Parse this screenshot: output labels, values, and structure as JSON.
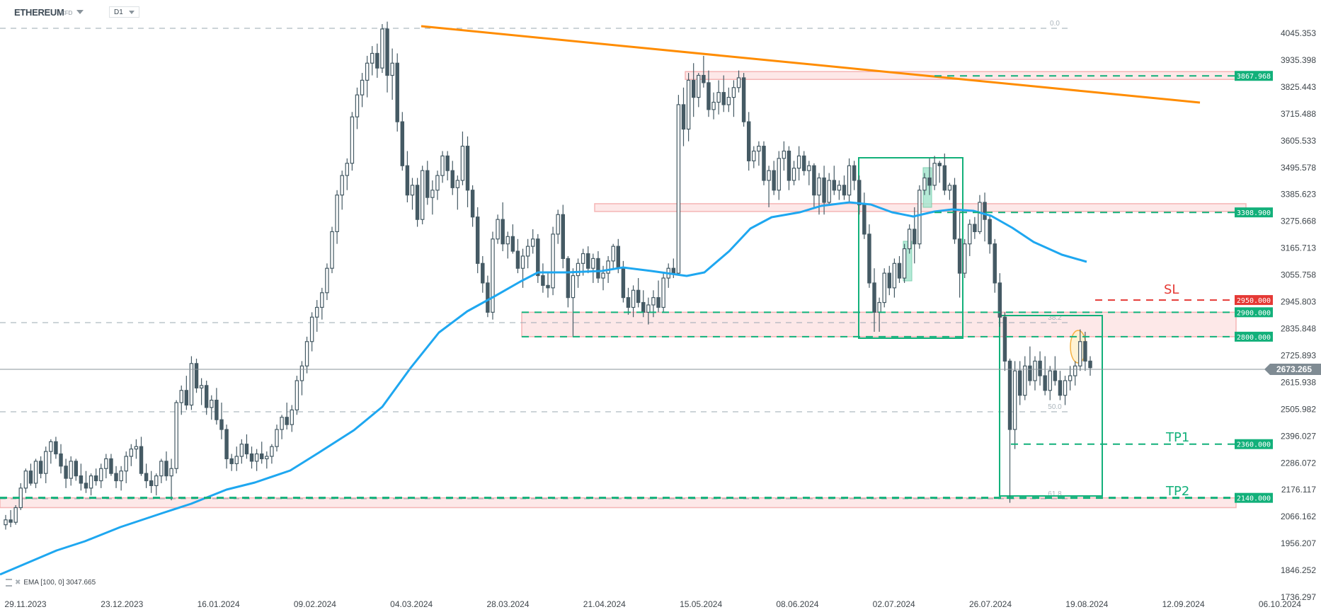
{
  "header": {
    "symbol": "ETHEREUM",
    "symbol_type": "CFD",
    "timeframe": "D1"
  },
  "indicator_legend": {
    "label": "EMA [100, 0] 3047.665"
  },
  "colors": {
    "candle": "#455a64",
    "ema": "#1ea7f0",
    "trendline": "#ff8c00",
    "green": "#12b07a",
    "red": "#e53935",
    "zone_fill": "#fde8e8",
    "zone_border": "#f5b5b5",
    "fib": "#9aa8b2",
    "price_tag": "#7f8b93"
  },
  "chart_data": {
    "type": "candlestick",
    "title": "ETHEREUM CFD D1",
    "xlabel": "",
    "ylabel": "",
    "ylim": [
      1736.297,
      4100
    ],
    "y_ticks": [
      "4045.353",
      "3935.398",
      "3825.443",
      "3715.488",
      "3605.533",
      "3495.578",
      "3385.623",
      "3275.668",
      "3165.713",
      "3055.758",
      "2945.803",
      "2835.848",
      "2725.893",
      "2615.938",
      "2505.982",
      "2396.027",
      "2286.072",
      "2176.117",
      "2066.162",
      "1956.207",
      "1846.252",
      "1736.297"
    ],
    "x_ticks": [
      "29.11.2023",
      "23.12.2023",
      "16.01.2024",
      "09.02.2024",
      "04.03.2024",
      "28.03.2024",
      "21.04.2024",
      "15.05.2024",
      "08.06.2024",
      "02.07.2024",
      "26.07.2024",
      "19.08.2024",
      "12.09.2024",
      "06.10.2024"
    ],
    "current_price": "2673.265",
    "levels": [
      {
        "name": "resistance-3867",
        "value": "3867.968",
        "color": "green"
      },
      {
        "name": "resistance-3308",
        "value": "3308.900",
        "color": "green"
      },
      {
        "name": "stop-loss",
        "value": "2950.000",
        "color": "red",
        "label": "SL"
      },
      {
        "name": "zone-top",
        "value": "2900.000",
        "color": "green"
      },
      {
        "name": "zone-bottom",
        "value": "2800.000",
        "color": "green"
      },
      {
        "name": "take-profit-1",
        "value": "2360.000",
        "color": "green",
        "label": "TP1"
      },
      {
        "name": "take-profit-2",
        "value": "2140.000",
        "color": "green",
        "label": "TP2"
      }
    ],
    "fibonacci": [
      "0.0",
      "38.2",
      "50.0",
      "61.8"
    ],
    "ema": {
      "period": 100,
      "value": 3047.665
    },
    "annotations": [
      "SL",
      "TP1",
      "TP2"
    ],
    "ohlc_approx": [
      [
        2030,
        2070,
        2010,
        2050
      ],
      [
        2050,
        2090,
        2020,
        2040
      ],
      [
        2040,
        2110,
        2030,
        2100
      ],
      [
        2100,
        2200,
        2090,
        2180
      ],
      [
        2180,
        2260,
        2160,
        2250
      ],
      [
        2250,
        2280,
        2190,
        2200
      ],
      [
        2200,
        2300,
        2180,
        2290
      ],
      [
        2290,
        2310,
        2220,
        2240
      ],
      [
        2240,
        2350,
        2200,
        2330
      ],
      [
        2330,
        2380,
        2280,
        2370
      ],
      [
        2370,
        2390,
        2300,
        2320
      ],
      [
        2320,
        2360,
        2240,
        2270
      ],
      [
        2270,
        2300,
        2180,
        2220
      ],
      [
        2220,
        2310,
        2190,
        2290
      ],
      [
        2290,
        2300,
        2210,
        2230
      ],
      [
        2230,
        2280,
        2170,
        2200
      ],
      [
        2200,
        2250,
        2160,
        2180
      ],
      [
        2180,
        2240,
        2150,
        2230
      ],
      [
        2230,
        2260,
        2190,
        2210
      ],
      [
        2210,
        2280,
        2180,
        2260
      ],
      [
        2260,
        2320,
        2220,
        2300
      ],
      [
        2300,
        2320,
        2230,
        2240
      ],
      [
        2240,
        2270,
        2180,
        2210
      ],
      [
        2210,
        2270,
        2170,
        2250
      ],
      [
        2250,
        2330,
        2200,
        2310
      ],
      [
        2310,
        2360,
        2270,
        2340
      ],
      [
        2340,
        2380,
        2300,
        2350
      ],
      [
        2350,
        2390,
        2230,
        2240
      ],
      [
        2240,
        2280,
        2180,
        2210
      ],
      [
        2210,
        2250,
        2160,
        2190
      ],
      [
        2190,
        2240,
        2150,
        2230
      ],
      [
        2230,
        2300,
        2200,
        2290
      ],
      [
        2290,
        2330,
        2210,
        2230
      ],
      [
        2230,
        2300,
        2130,
        2260
      ],
      [
        2260,
        2540,
        2240,
        2530
      ],
      [
        2530,
        2600,
        2480,
        2580
      ],
      [
        2580,
        2640,
        2500,
        2520
      ],
      [
        2520,
        2720,
        2500,
        2690
      ],
      [
        2690,
        2710,
        2570,
        2590
      ],
      [
        2590,
        2630,
        2520,
        2600
      ],
      [
        2600,
        2620,
        2480,
        2510
      ],
      [
        2510,
        2560,
        2460,
        2540
      ],
      [
        2540,
        2590,
        2440,
        2460
      ],
      [
        2460,
        2530,
        2380,
        2420
      ],
      [
        2420,
        2440,
        2260,
        2300
      ],
      [
        2300,
        2320,
        2250,
        2280
      ],
      [
        2280,
        2350,
        2250,
        2310
      ],
      [
        2310,
        2380,
        2280,
        2360
      ],
      [
        2360,
        2400,
        2300,
        2320
      ],
      [
        2320,
        2350,
        2260,
        2290
      ],
      [
        2290,
        2340,
        2250,
        2320
      ],
      [
        2320,
        2370,
        2280,
        2300
      ],
      [
        2300,
        2330,
        2260,
        2310
      ],
      [
        2310,
        2360,
        2280,
        2350
      ],
      [
        2350,
        2440,
        2330,
        2420
      ],
      [
        2420,
        2480,
        2380,
        2470
      ],
      [
        2470,
        2530,
        2420,
        2440
      ],
      [
        2440,
        2520,
        2410,
        2500
      ],
      [
        2500,
        2640,
        2480,
        2620
      ],
      [
        2620,
        2700,
        2560,
        2680
      ],
      [
        2680,
        2800,
        2650,
        2780
      ],
      [
        2780,
        2900,
        2740,
        2880
      ],
      [
        2880,
        2950,
        2820,
        2920
      ],
      [
        2920,
        3000,
        2870,
        2980
      ],
      [
        2980,
        3100,
        2950,
        3080
      ],
      [
        3080,
        3250,
        3060,
        3230
      ],
      [
        3230,
        3400,
        3180,
        3380
      ],
      [
        3380,
        3480,
        3320,
        3460
      ],
      [
        3460,
        3530,
        3400,
        3510
      ],
      [
        3510,
        3720,
        3480,
        3700
      ],
      [
        3700,
        3820,
        3650,
        3790
      ],
      [
        3790,
        3880,
        3740,
        3850
      ],
      [
        3850,
        3950,
        3780,
        3920
      ],
      [
        3920,
        3990,
        3870,
        3960
      ],
      [
        3960,
        4000,
        3860,
        3900
      ],
      [
        3900,
        4080,
        3880,
        4060
      ],
      [
        4060,
        4090,
        3800,
        3870
      ],
      [
        3870,
        3980,
        3770,
        3920
      ],
      [
        3920,
        3960,
        3640,
        3680
      ],
      [
        3680,
        3720,
        3480,
        3500
      ],
      [
        3500,
        3560,
        3350,
        3380
      ],
      [
        3380,
        3450,
        3320,
        3420
      ],
      [
        3420,
        3450,
        3250,
        3280
      ],
      [
        3280,
        3500,
        3260,
        3480
      ],
      [
        3480,
        3520,
        3340,
        3370
      ],
      [
        3370,
        3440,
        3300,
        3400
      ],
      [
        3400,
        3480,
        3360,
        3460
      ],
      [
        3460,
        3560,
        3430,
        3540
      ],
      [
        3540,
        3560,
        3440,
        3480
      ],
      [
        3480,
        3520,
        3380,
        3410
      ],
      [
        3410,
        3460,
        3320,
        3440
      ],
      [
        3440,
        3640,
        3420,
        3580
      ],
      [
        3580,
        3620,
        3330,
        3400
      ],
      [
        3400,
        3420,
        3250,
        3290
      ],
      [
        3290,
        3330,
        3060,
        3100
      ],
      [
        3100,
        3130,
        2980,
        3020
      ],
      [
        3020,
        3050,
        2880,
        2900
      ],
      [
        2900,
        3230,
        2870,
        3200
      ],
      [
        3200,
        3300,
        3180,
        3280
      ],
      [
        3280,
        3350,
        3150,
        3180
      ],
      [
        3180,
        3230,
        3120,
        3210
      ],
      [
        3210,
        3260,
        3140,
        3150
      ],
      [
        3150,
        3200,
        3060,
        3080
      ],
      [
        3080,
        3160,
        3000,
        3130
      ],
      [
        3130,
        3200,
        3080,
        3170
      ],
      [
        3170,
        3240,
        3140,
        3200
      ],
      [
        3200,
        3220,
        3020,
        3050
      ],
      [
        3050,
        3100,
        2980,
        3010
      ],
      [
        3010,
        3060,
        2960,
        3000
      ],
      [
        3000,
        3250,
        2970,
        3220
      ],
      [
        3220,
        3320,
        3180,
        3300
      ],
      [
        3300,
        3340,
        3080,
        3120
      ],
      [
        3120,
        3130,
        2920,
        2960
      ],
      [
        2960,
        3080,
        2800,
        3050
      ],
      [
        3050,
        3120,
        3000,
        3100
      ],
      [
        3100,
        3160,
        3050,
        3140
      ],
      [
        3140,
        3170,
        3060,
        3080
      ],
      [
        3080,
        3140,
        3020,
        3120
      ],
      [
        3120,
        3150,
        3020,
        3040
      ],
      [
        3040,
        3090,
        2990,
        3060
      ],
      [
        3060,
        3130,
        3020,
        3110
      ],
      [
        3110,
        3180,
        3080,
        3170
      ],
      [
        3170,
        3200,
        3060,
        3080
      ],
      [
        3080,
        3110,
        2940,
        2960
      ],
      [
        2960,
        3000,
        2890,
        2920
      ],
      [
        2920,
        3010,
        2880,
        2990
      ],
      [
        2990,
        3040,
        2920,
        2940
      ],
      [
        2940,
        2990,
        2880,
        2900
      ],
      [
        2900,
        2960,
        2850,
        2930
      ],
      [
        2930,
        2990,
        2880,
        2960
      ],
      [
        2960,
        3030,
        2900,
        2920
      ],
      [
        2920,
        3060,
        2900,
        3040
      ],
      [
        3040,
        3100,
        3000,
        3080
      ],
      [
        3080,
        3120,
        3040,
        3060
      ],
      [
        3060,
        3790,
        3050,
        3750
      ],
      [
        3750,
        3820,
        3580,
        3650
      ],
      [
        3650,
        3880,
        3600,
        3850
      ],
      [
        3850,
        3920,
        3700,
        3780
      ],
      [
        3780,
        3880,
        3740,
        3870
      ],
      [
        3870,
        3950,
        3820,
        3840
      ],
      [
        3840,
        3890,
        3700,
        3730
      ],
      [
        3730,
        3800,
        3690,
        3760
      ],
      [
        3760,
        3850,
        3710,
        3800
      ],
      [
        3800,
        3870,
        3720,
        3750
      ],
      [
        3750,
        3820,
        3720,
        3780
      ],
      [
        3780,
        3850,
        3700,
        3820
      ],
      [
        3820,
        3890,
        3800,
        3860
      ],
      [
        3860,
        3880,
        3660,
        3680
      ],
      [
        3680,
        3720,
        3480,
        3520
      ],
      [
        3520,
        3580,
        3490,
        3560
      ],
      [
        3560,
        3600,
        3500,
        3580
      ],
      [
        3580,
        3600,
        3420,
        3440
      ],
      [
        3440,
        3500,
        3330,
        3480
      ],
      [
        3480,
        3520,
        3380,
        3400
      ],
      [
        3400,
        3560,
        3360,
        3530
      ],
      [
        3530,
        3600,
        3480,
        3560
      ],
      [
        3560,
        3580,
        3400,
        3440
      ],
      [
        3440,
        3520,
        3420,
        3490
      ],
      [
        3490,
        3580,
        3440,
        3540
      ],
      [
        3540,
        3560,
        3460,
        3480
      ],
      [
        3480,
        3520,
        3420,
        3500
      ],
      [
        3500,
        3510,
        3330,
        3380
      ],
      [
        3380,
        3470,
        3300,
        3450
      ],
      [
        3450,
        3500,
        3300,
        3350
      ],
      [
        3350,
        3470,
        3340,
        3440
      ],
      [
        3440,
        3500,
        3380,
        3400
      ],
      [
        3400,
        3440,
        3360,
        3420
      ],
      [
        3420,
        3460,
        3360,
        3380
      ],
      [
        3380,
        3530,
        3350,
        3500
      ],
      [
        3500,
        3520,
        3400,
        3440
      ],
      [
        3440,
        3460,
        3300,
        3340
      ],
      [
        3340,
        3390,
        3200,
        3220
      ],
      [
        3220,
        3260,
        3000,
        3020
      ],
      [
        3020,
        3080,
        2820,
        2900
      ],
      [
        2900,
        2960,
        2820,
        2940
      ],
      [
        2940,
        3080,
        2920,
        3060
      ],
      [
        3060,
        3090,
        2970,
        3000
      ],
      [
        3000,
        3120,
        2960,
        3100
      ],
      [
        3100,
        3130,
        3020,
        3040
      ],
      [
        3040,
        3180,
        3020,
        3160
      ],
      [
        3160,
        3260,
        3140,
        3240
      ],
      [
        3240,
        3330,
        3100,
        3180
      ],
      [
        3180,
        3420,
        3160,
        3400
      ],
      [
        3400,
        3470,
        3380,
        3450
      ],
      [
        3450,
        3530,
        3380,
        3420
      ],
      [
        3420,
        3540,
        3400,
        3510
      ],
      [
        3510,
        3520,
        3430,
        3500
      ],
      [
        3500,
        3550,
        3380,
        3400
      ],
      [
        3400,
        3430,
        3360,
        3420
      ],
      [
        3420,
        3450,
        3180,
        3200
      ],
      [
        3200,
        3310,
        2960,
        3060
      ],
      [
        3060,
        3200,
        3040,
        3180
      ],
      [
        3180,
        3280,
        3130,
        3260
      ],
      [
        3260,
        3290,
        3200,
        3230
      ],
      [
        3230,
        3380,
        3220,
        3350
      ],
      [
        3350,
        3390,
        3190,
        3280
      ],
      [
        3280,
        3300,
        3140,
        3180
      ],
      [
        3180,
        3200,
        2980,
        3020
      ],
      [
        3020,
        3060,
        2840,
        2880
      ],
      [
        2880,
        2900,
        2660,
        2700
      ],
      [
        2700,
        2710,
        2120,
        2420
      ],
      [
        2420,
        2700,
        2340,
        2660
      ],
      [
        2660,
        2700,
        2520,
        2560
      ],
      [
        2560,
        2720,
        2540,
        2680
      ],
      [
        2680,
        2760,
        2600,
        2620
      ],
      [
        2620,
        2720,
        2580,
        2700
      ],
      [
        2700,
        2740,
        2600,
        2640
      ],
      [
        2640,
        2720,
        2560,
        2580
      ],
      [
        2580,
        2680,
        2540,
        2660
      ],
      [
        2660,
        2720,
        2600,
        2620
      ],
      [
        2620,
        2660,
        2540,
        2560
      ],
      [
        2560,
        2640,
        2520,
        2620
      ],
      [
        2620,
        2680,
        2580,
        2640
      ],
      [
        2640,
        2700,
        2600,
        2680
      ],
      [
        2680,
        2830,
        2660,
        2780
      ],
      [
        2780,
        2820,
        2660,
        2700
      ],
      [
        2700,
        2720,
        2640,
        2673
      ]
    ]
  }
}
